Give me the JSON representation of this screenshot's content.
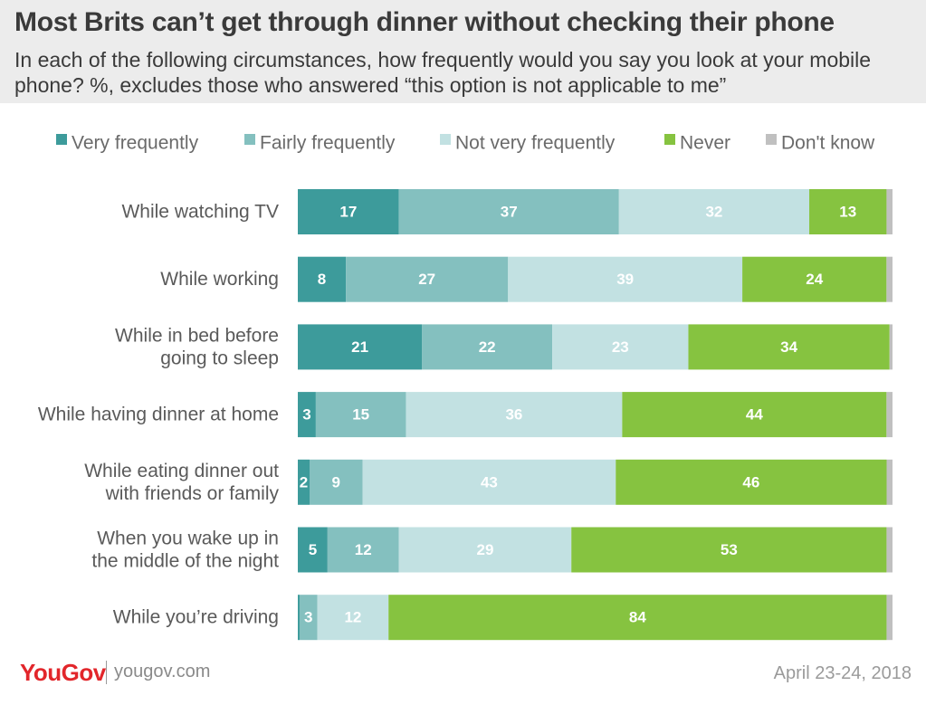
{
  "header": {
    "title": "Most Brits can’t get through dinner without checking their phone",
    "subtitle": "In each of the following circumstances, how frequently would you say you look at your mobile phone? %, excludes those who answered “this option is not applicable to me”"
  },
  "footer": {
    "logo": "YouGov",
    "url": "yougov.com",
    "date": "April 23-24, 2018"
  },
  "chart_data": {
    "type": "bar",
    "orientation": "horizontal",
    "stacked": true,
    "title": "Most Brits can’t get through dinner without checking their phone",
    "unit": "%",
    "legend_position": "top",
    "categories": [
      [
        "While watching TV"
      ],
      [
        "While working"
      ],
      [
        "While in bed before",
        "going to sleep"
      ],
      [
        "While having dinner at home"
      ],
      [
        "While eating dinner out",
        "with friends or family"
      ],
      [
        "When you wake up in",
        "the middle of the night"
      ],
      [
        "While you’re driving"
      ]
    ],
    "series": [
      {
        "name": "Very frequently",
        "color": "#3d9b9b",
        "values": [
          17,
          8,
          21,
          3,
          2,
          5,
          0.3
        ],
        "labels": [
          "17",
          "8",
          "21",
          "3",
          "2",
          "5",
          ""
        ]
      },
      {
        "name": "Fairly frequently",
        "color": "#84c0bf",
        "values": [
          37,
          27,
          22,
          15,
          9,
          12,
          3
        ],
        "labels": [
          "37",
          "27",
          "22",
          "15",
          "9",
          "12",
          "3"
        ]
      },
      {
        "name": "Not very frequently",
        "color": "#c2e1e2",
        "values": [
          32,
          39,
          23,
          36,
          43,
          29,
          12
        ],
        "labels": [
          "32",
          "39",
          "23",
          "36",
          "43",
          "29",
          "12"
        ]
      },
      {
        "name": "Never",
        "color": "#86c340",
        "values": [
          13,
          24,
          34,
          44,
          46,
          53,
          84
        ],
        "labels": [
          "13",
          "24",
          "34",
          "44",
          "46",
          "53",
          "84"
        ]
      },
      {
        "name": "Don't know",
        "color": "#c0c0c0",
        "values": [
          1,
          1,
          0.5,
          1,
          1,
          1,
          1
        ],
        "labels": [
          "",
          "",
          "",
          "",
          "",
          "",
          ""
        ]
      }
    ],
    "xlim": [
      0,
      100
    ]
  }
}
